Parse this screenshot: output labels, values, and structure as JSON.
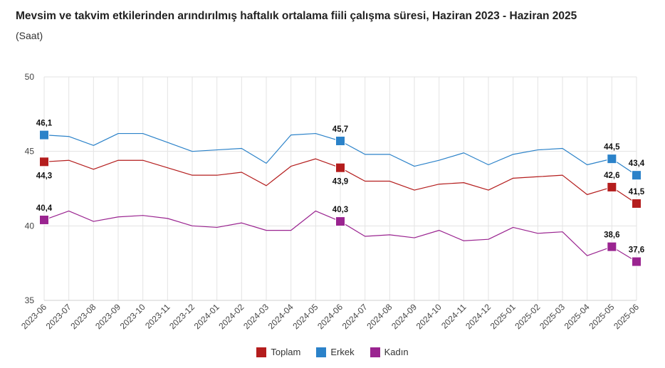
{
  "header": {
    "title": "Mevsim ve takvim etkilerinden arındırılmış haftalık ortalama fiili çalışma süresi, Haziran 2023 - Haziran 2025",
    "subtitle": "(Saat)"
  },
  "chart_data": {
    "type": "line",
    "title": "Mevsim ve takvim etkilerinden arındırılmış haftalık ortalama fiili çalışma süresi, Haziran 2023 - Haziran 2025",
    "subtitle": "(Saat)",
    "xlabel": "",
    "ylabel": "",
    "ylim": [
      35,
      50
    ],
    "yticks": [
      "35",
      "40",
      "45",
      "50"
    ],
    "grid": true,
    "legend_position": "bottom-center",
    "categories": [
      "2023-06",
      "2023-07",
      "2023-08",
      "2023-09",
      "2023-10",
      "2023-11",
      "2023-12",
      "2024-01",
      "2024-02",
      "2024-03",
      "2024-04",
      "2024-05",
      "2024-06",
      "2024-07",
      "2024-08",
      "2024-09",
      "2024-10",
      "2024-11",
      "2024-12",
      "2025-01",
      "2025-02",
      "2025-03",
      "2025-04",
      "2025-05",
      "2025-06"
    ],
    "series": [
      {
        "name": "Toplam",
        "color": "#b41d1d",
        "values": [
          44.3,
          44.4,
          43.8,
          44.4,
          44.4,
          43.9,
          43.4,
          43.4,
          43.6,
          42.7,
          44.0,
          44.5,
          43.9,
          43.0,
          43.0,
          42.4,
          42.8,
          42.9,
          42.4,
          43.2,
          43.3,
          43.4,
          42.1,
          42.6,
          41.5
        ],
        "labels": [
          {
            "index": 0,
            "text": "44,3",
            "pos": "below"
          },
          {
            "index": 12,
            "text": "43,9",
            "pos": "below"
          },
          {
            "index": 23,
            "text": "42,6",
            "pos": "above"
          },
          {
            "index": 24,
            "text": "41,5",
            "pos": "above"
          }
        ]
      },
      {
        "name": "Erkek",
        "color": "#2b82c9",
        "values": [
          46.1,
          46.0,
          45.4,
          46.2,
          46.2,
          45.6,
          45.0,
          45.1,
          45.2,
          44.2,
          46.1,
          46.2,
          45.7,
          44.8,
          44.8,
          44.0,
          44.4,
          44.9,
          44.1,
          44.8,
          45.1,
          45.2,
          44.1,
          44.5,
          43.4
        ],
        "labels": [
          {
            "index": 0,
            "text": "46,1",
            "pos": "above"
          },
          {
            "index": 12,
            "text": "45,7",
            "pos": "above"
          },
          {
            "index": 23,
            "text": "44,5",
            "pos": "above"
          },
          {
            "index": 24,
            "text": "43,4",
            "pos": "above"
          }
        ]
      },
      {
        "name": "Kadın",
        "color": "#9a2490",
        "values": [
          40.4,
          41.0,
          40.3,
          40.6,
          40.7,
          40.5,
          40.0,
          39.9,
          40.2,
          39.7,
          39.7,
          41.0,
          40.3,
          39.3,
          39.4,
          39.2,
          39.7,
          39.0,
          39.1,
          39.9,
          39.5,
          39.6,
          38.0,
          38.6,
          37.6
        ],
        "labels": [
          {
            "index": 0,
            "text": "40,4",
            "pos": "above"
          },
          {
            "index": 12,
            "text": "40,3",
            "pos": "above"
          },
          {
            "index": 23,
            "text": "38,6",
            "pos": "above"
          },
          {
            "index": 24,
            "text": "37,6",
            "pos": "above"
          }
        ]
      }
    ],
    "marker_indices": [
      0,
      12,
      23,
      24
    ]
  }
}
